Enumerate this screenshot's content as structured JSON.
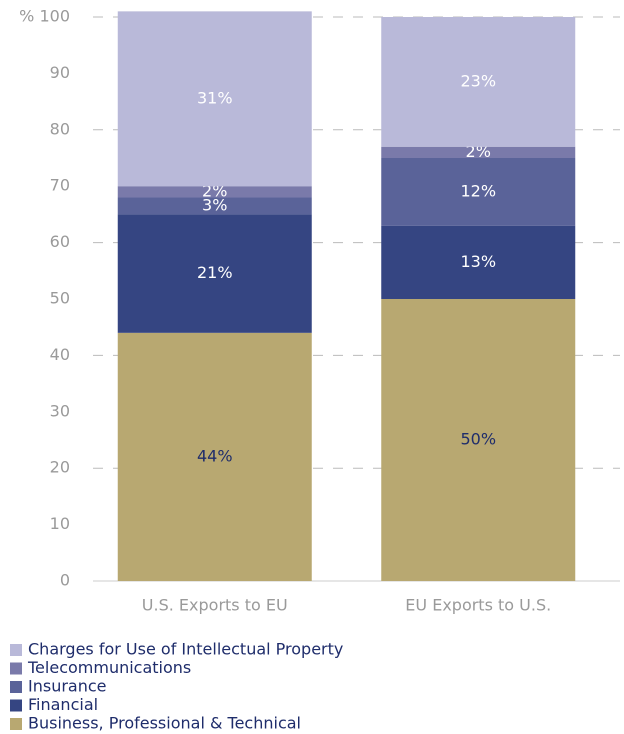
{
  "chart_data": {
    "type": "stacked_bar",
    "categories": [
      "U.S. Exports to EU",
      "EU Exports to U.S."
    ],
    "series": [
      {
        "name": "Business, Professional & Technical",
        "color": "#b8a871",
        "values": [
          44,
          50
        ],
        "value_labels": [
          "44%",
          "50%"
        ]
      },
      {
        "name": "Financial",
        "color": "#354582",
        "values": [
          21,
          13
        ],
        "value_labels": [
          "21%",
          "13%"
        ]
      },
      {
        "name": "Insurance",
        "color": "#5a6399",
        "values": [
          3,
          12
        ],
        "value_labels": [
          "3%",
          "12%"
        ]
      },
      {
        "name": "Telecommunications",
        "color": "#7a7aaa",
        "values": [
          2,
          2
        ],
        "value_labels": [
          "2%",
          "2%"
        ]
      },
      {
        "name": "Charges for Use of Intellectual Property",
        "color": "#b9b9d9",
        "values": [
          31,
          23
        ],
        "value_labels": [
          "31%",
          "23%"
        ]
      }
    ],
    "ylim": [
      0,
      100
    ],
    "yticks": [
      0,
      10,
      20,
      30,
      40,
      50,
      60,
      70,
      80,
      90,
      {
        "value": 100,
        "label": "% 100"
      }
    ],
    "grid": true
  }
}
